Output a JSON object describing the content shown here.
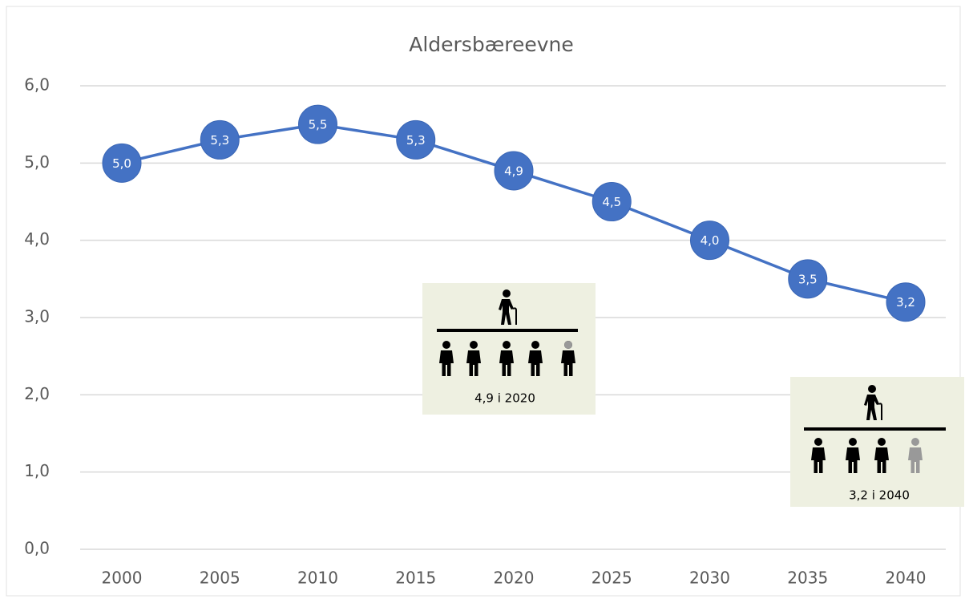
{
  "chart_data": {
    "type": "line",
    "title": "Aldersbæreevne",
    "categories": [
      "2000",
      "2005",
      "2010",
      "2015",
      "2020",
      "2025",
      "2030",
      "2035",
      "2040"
    ],
    "values": [
      5.0,
      5.3,
      5.5,
      5.3,
      4.9,
      4.5,
      4.0,
      3.5,
      3.2
    ],
    "value_labels": [
      "5,0",
      "5,3",
      "5,5",
      "5,3",
      "4,9",
      "4,5",
      "4,0",
      "3,5",
      "3,2"
    ],
    "color": "#4472c4",
    "ylim": [
      0,
      6
    ],
    "yticks": [
      {
        "value": 0,
        "label": "0,0"
      },
      {
        "value": 1,
        "label": "1,0"
      },
      {
        "value": 2,
        "label": "2,0"
      },
      {
        "value": 3,
        "label": "3,0"
      },
      {
        "value": 4,
        "label": "4,0"
      },
      {
        "value": 5,
        "label": "5,0"
      },
      {
        "value": 6,
        "label": "6,0"
      }
    ],
    "grid": true,
    "annotations": [
      "4,9 i 2020",
      "3,2 i 2040"
    ]
  }
}
